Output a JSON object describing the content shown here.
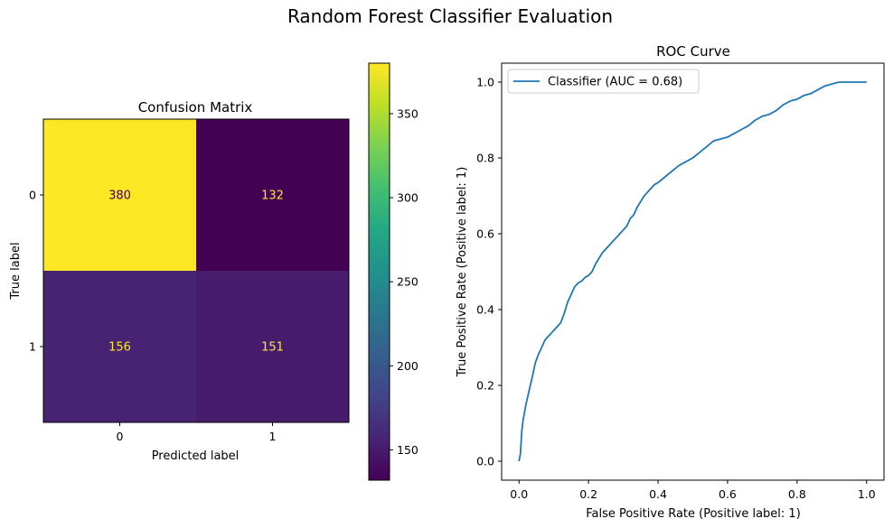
{
  "suptitle": "Random Forest Classifier Evaluation",
  "chart_data": [
    {
      "type": "heatmap",
      "title": "Confusion Matrix",
      "xlabel": "Predicted label",
      "ylabel": "True label",
      "x_categories": [
        "0",
        "1"
      ],
      "y_categories": [
        "0",
        "1"
      ],
      "values": [
        [
          380,
          132
        ],
        [
          156,
          151
        ]
      ],
      "colormap": "viridis",
      "colorbar": {
        "range": [
          132,
          380
        ],
        "ticks": [
          150,
          200,
          250,
          300,
          350
        ],
        "tick_labels": [
          "150",
          "200",
          "250",
          "300",
          "350"
        ]
      },
      "text_colors": {
        "low": "#fde725",
        "high": "#440154"
      },
      "grid": false
    },
    {
      "type": "line",
      "title": "ROC Curve",
      "xlabel": "False Positive Rate (Positive label: 1)",
      "ylabel": "True Positive Rate (Positive label: 1)",
      "xlim": [
        -0.05,
        1.05
      ],
      "ylim": [
        -0.05,
        1.05
      ],
      "xticks": [
        0.0,
        0.2,
        0.4,
        0.6,
        0.8,
        1.0
      ],
      "xtick_labels": [
        "0.0",
        "0.2",
        "0.4",
        "0.6",
        "0.8",
        "1.0"
      ],
      "yticks": [
        0.0,
        0.2,
        0.4,
        0.6,
        0.8,
        1.0
      ],
      "ytick_labels": [
        "0.0",
        "0.2",
        "0.4",
        "0.6",
        "0.8",
        "1.0"
      ],
      "legend_position": "upper-left",
      "grid": false,
      "series": [
        {
          "name": "Classifier (AUC = 0.68)",
          "color": "#1f77b4",
          "x": [
            0.0,
            0.004,
            0.006,
            0.008,
            0.012,
            0.016,
            0.02,
            0.025,
            0.03,
            0.035,
            0.04,
            0.047,
            0.055,
            0.06,
            0.065,
            0.07,
            0.075,
            0.08,
            0.085,
            0.09,
            0.095,
            0.1,
            0.11,
            0.12,
            0.13,
            0.14,
            0.15,
            0.16,
            0.17,
            0.18,
            0.19,
            0.2,
            0.21,
            0.22,
            0.24,
            0.26,
            0.27,
            0.28,
            0.29,
            0.3,
            0.31,
            0.32,
            0.33,
            0.34,
            0.35,
            0.36,
            0.37,
            0.38,
            0.39,
            0.4,
            0.42,
            0.44,
            0.46,
            0.48,
            0.5,
            0.52,
            0.54,
            0.56,
            0.58,
            0.6,
            0.62,
            0.64,
            0.66,
            0.68,
            0.7,
            0.72,
            0.74,
            0.76,
            0.78,
            0.8,
            0.82,
            0.84,
            0.86,
            0.88,
            0.9,
            0.92,
            0.94,
            0.96,
            0.98,
            0.99,
            1.0
          ],
          "y": [
            0.0,
            0.02,
            0.05,
            0.08,
            0.11,
            0.13,
            0.15,
            0.17,
            0.19,
            0.21,
            0.23,
            0.26,
            0.28,
            0.29,
            0.3,
            0.31,
            0.32,
            0.325,
            0.33,
            0.335,
            0.34,
            0.345,
            0.355,
            0.365,
            0.39,
            0.42,
            0.44,
            0.46,
            0.47,
            0.475,
            0.485,
            0.49,
            0.5,
            0.52,
            0.55,
            0.57,
            0.58,
            0.59,
            0.6,
            0.61,
            0.62,
            0.64,
            0.65,
            0.67,
            0.685,
            0.7,
            0.71,
            0.72,
            0.73,
            0.735,
            0.75,
            0.765,
            0.78,
            0.79,
            0.8,
            0.815,
            0.83,
            0.845,
            0.85,
            0.855,
            0.865,
            0.875,
            0.885,
            0.9,
            0.91,
            0.915,
            0.925,
            0.94,
            0.95,
            0.955,
            0.965,
            0.97,
            0.98,
            0.99,
            0.995,
            1.0,
            1.0,
            1.0,
            1.0,
            1.0,
            1.0
          ]
        }
      ]
    }
  ]
}
